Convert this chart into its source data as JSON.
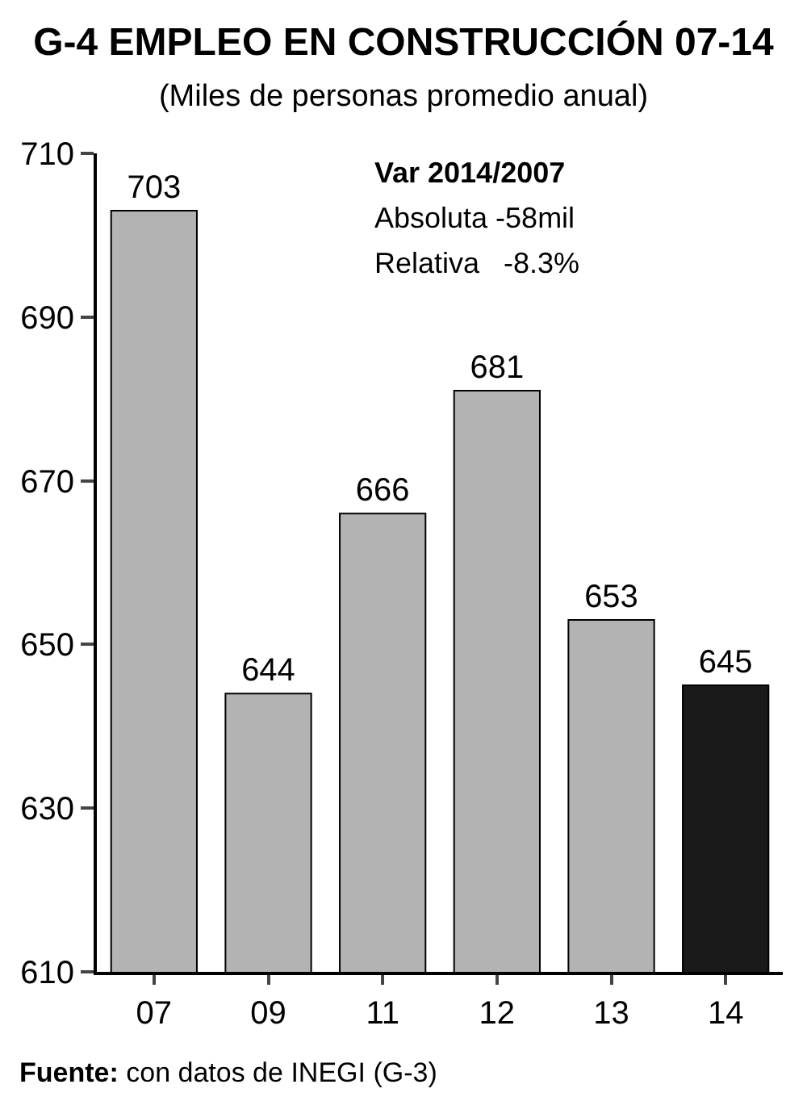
{
  "chart_data": {
    "type": "bar",
    "title": "G-4 EMPLEO EN CONSTRUCCIÓN 07-14",
    "subtitle": "(Miles de personas promedio anual)",
    "categories": [
      "07",
      "09",
      "11",
      "12",
      "13",
      "14"
    ],
    "values": [
      703,
      644,
      666,
      681,
      653,
      645
    ],
    "colors": [
      "#b3b3b3",
      "#b3b3b3",
      "#b3b3b3",
      "#b3b3b3",
      "#b3b3b3",
      "#1a1a1a"
    ],
    "ylim": [
      610,
      710
    ],
    "yticks": [
      610,
      630,
      650,
      670,
      690,
      710
    ],
    "data_labels": true,
    "legend": false,
    "annotations": [
      "Var 2014/2007",
      "Absoluta -58mil",
      "Relativa   -8.3%",
      "Fuente: con datos de INEGI (G-3)"
    ]
  }
}
